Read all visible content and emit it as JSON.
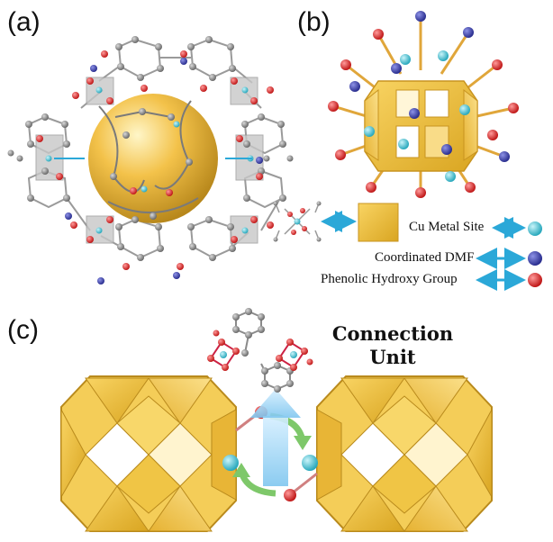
{
  "panels": {
    "a": {
      "label": "(a)"
    },
    "b": {
      "label": "(b)"
    },
    "c": {
      "label": "(c)"
    }
  },
  "legend": {
    "cu_metal_site": "Cu Metal Site",
    "coordinated_dmf": "Coordinated DMF",
    "phenolic_hydroxy": "Phenolic Hydroxy Group"
  },
  "connection_unit": {
    "line1": "Connection",
    "line2": "Unit"
  },
  "colors": {
    "cage_gold": "#f2c23a",
    "cu_cyan": "#49c6d6",
    "dmf_blue": "#3a3fa8",
    "hydroxy_red": "#d42a2a",
    "arrow_cyan": "#2ba8d8",
    "curve_arrow_green": "#7ec86a",
    "carbon_gray": "#8a8a8a"
  }
}
